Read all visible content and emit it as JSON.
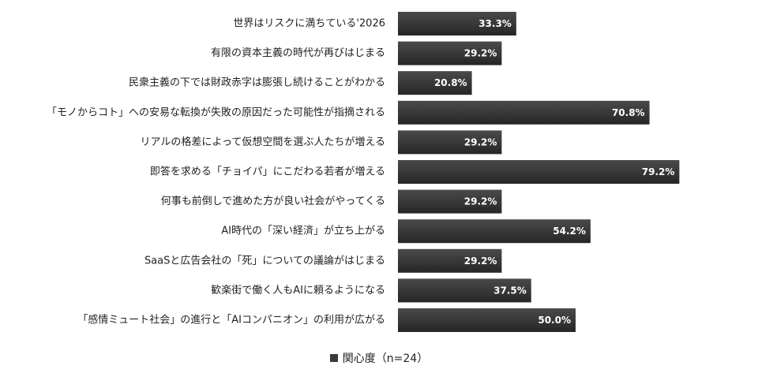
{
  "chart_data": {
    "type": "bar",
    "orientation": "horizontal",
    "categories": [
      "世界はリスクに満ちている'2026",
      "有限の資本主義の時代が再びはじまる",
      "民衆主義の下では財政赤字は膨張し続けることがわかる",
      "「モノからコト」への安易な転換が失敗の原因だった可能性が指摘される",
      "リアルの格差によって仮想空間を選ぶ人たちが増える",
      "即答を求める「チョイパ」にこだわる若者が増える",
      "何事も前倒しで進めた方が良い社会がやってくる",
      "AI時代の「深い経済」が立ち上がる",
      "SaaSと広告会社の「死」についての議論がはじまる",
      "歓楽街で働く人もAIに頼るようになる",
      "「感情ミュート社会」の進行と「AIコンパニオン」の利用が広がる"
    ],
    "series": [
      {
        "name": "関心度（n=24）",
        "values": [
          33.3,
          29.2,
          20.8,
          70.8,
          29.2,
          79.2,
          29.2,
          54.2,
          29.2,
          37.5,
          50.0
        ],
        "value_labels": [
          "33.3%",
          "29.2%",
          "20.8%",
          "70.8%",
          "29.2%",
          "79.2%",
          "29.2%",
          "54.2%",
          "29.2%",
          "37.5%",
          "50.0%"
        ]
      }
    ],
    "xlim": [
      0,
      100
    ],
    "grid": false,
    "legend_position": "bottom-center",
    "bar_color": "#3a3a3a"
  },
  "legend": {
    "label": "関心度（n=24）"
  }
}
